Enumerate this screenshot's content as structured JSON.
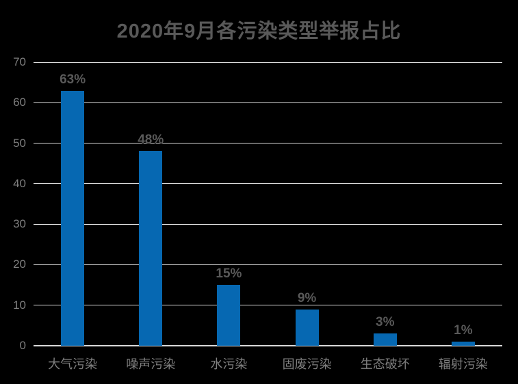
{
  "title": "2020年9月各污染类型举报占比",
  "colors": {
    "background": "#000000",
    "bar": "#0668b2",
    "title_text": "#595959",
    "data_label_text": "#595959",
    "axis_label_text": "#7f7f7f",
    "gridline": "#dcdcdc",
    "axis_line": "#d9d9d9"
  },
  "chart_data": {
    "type": "bar",
    "title": "2020年9月各污染类型举报占比",
    "categories": [
      "大气污染",
      "噪声污染",
      "水污染",
      "固废污染",
      "生态破坏",
      "辐射污染"
    ],
    "values": [
      63,
      48,
      15,
      9,
      3,
      1
    ],
    "data_labels": [
      "63%",
      "48%",
      "15%",
      "9%",
      "3%",
      "1%"
    ],
    "xlabel": "",
    "ylabel": "",
    "ylim": [
      0,
      70
    ],
    "yticks": [
      0,
      10,
      20,
      30,
      40,
      50,
      60,
      70
    ],
    "grid": true,
    "legend_position": "none",
    "data_label_suffix": "%"
  }
}
